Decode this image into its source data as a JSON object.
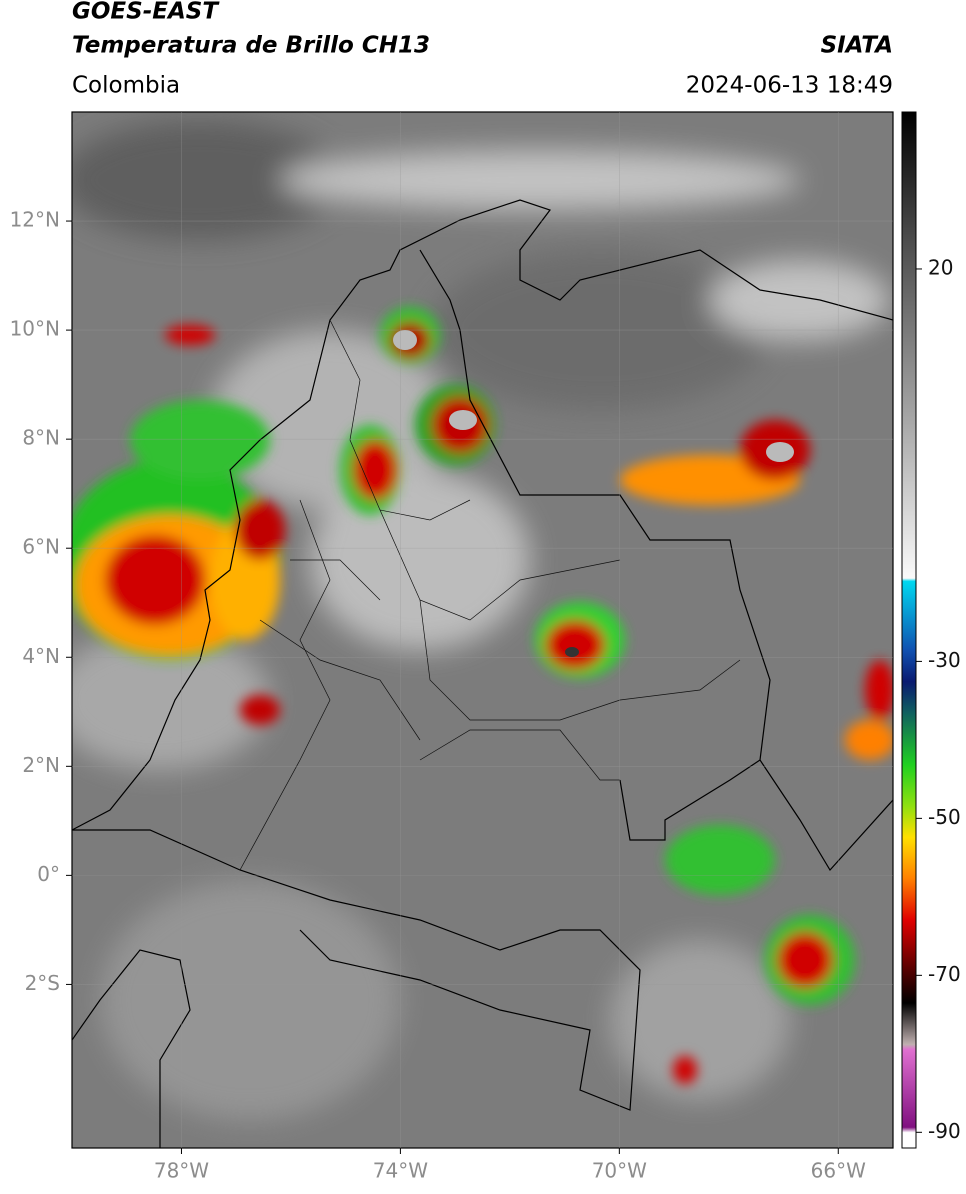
{
  "header": {
    "satellite": "GOES-EAST",
    "product": "Temperatura de Brillo CH13",
    "source": "SIATA",
    "region": "Colombia",
    "datetime": "2024-06-13 18:49"
  },
  "map": {
    "xlim": [
      -80,
      -65
    ],
    "ylim": [
      -5,
      14
    ],
    "xticks": [
      {
        "value": -78,
        "label": "78°W"
      },
      {
        "value": -74,
        "label": "74°W"
      },
      {
        "value": -70,
        "label": "70°W"
      },
      {
        "value": -66,
        "label": "66°W"
      }
    ],
    "yticks": [
      {
        "value": 12,
        "label": "12°N"
      },
      {
        "value": 10,
        "label": "10°N"
      },
      {
        "value": 8,
        "label": "8°N"
      },
      {
        "value": 6,
        "label": "6°N"
      },
      {
        "value": 4,
        "label": "4°N"
      },
      {
        "value": 2,
        "label": "2°N"
      },
      {
        "value": 0,
        "label": "0°"
      },
      {
        "value": -2,
        "label": "2°S"
      }
    ],
    "grid": true
  },
  "colorbar": {
    "lim": [
      -92,
      40
    ],
    "ticks": [
      20,
      -30,
      -50,
      -70,
      -90
    ]
  }
}
